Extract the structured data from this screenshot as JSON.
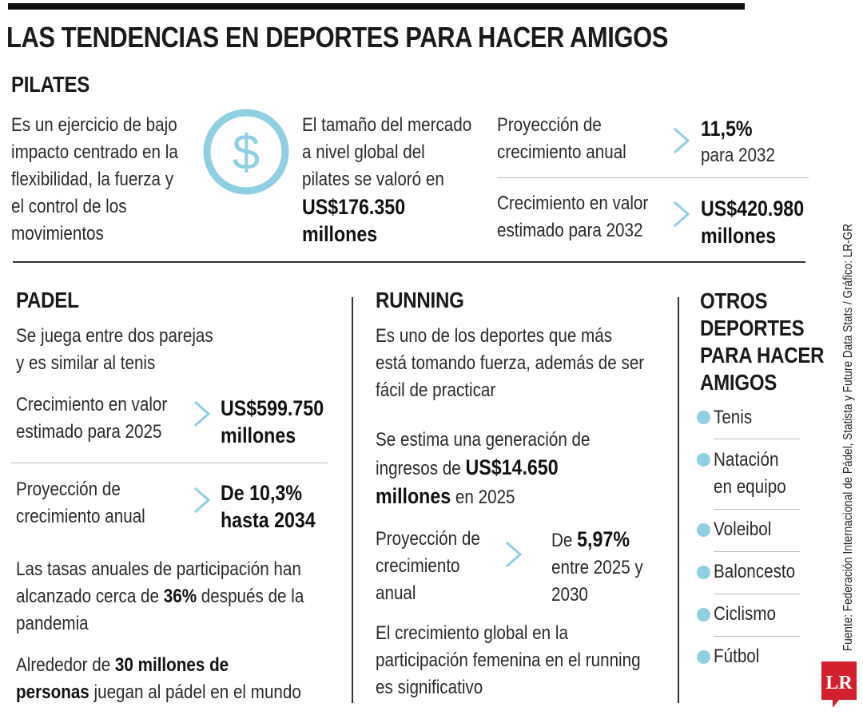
{
  "title": "LAS TENDENCIAS EN DEPORTES PARA HACER AMIGOS",
  "colors": {
    "accent": "#8ecfe3",
    "text": "#1a1a1a",
    "lr_red": "#d21f2b"
  },
  "pilates": {
    "heading": "PILATES",
    "description": [
      "Es un ejercicio de bajo",
      "impacto centrado en la",
      "flexibilidad, la fuerza y",
      "el control de los",
      "movimientos"
    ],
    "icon": "dollar-icon",
    "market": [
      "El tamaño del mercado",
      "a nivel global del",
      "pilates se valoró en"
    ],
    "market_value": [
      "US$176.350",
      "millones"
    ],
    "stat1_label": [
      "Proyección de",
      "crecimiento anual"
    ],
    "stat1_value": "11,5%",
    "stat1_sub": "para 2032",
    "stat2_label": [
      "Crecimiento en valor",
      "estimado para 2032"
    ],
    "stat2_value": [
      "US$420.980",
      "millones"
    ]
  },
  "padel": {
    "heading": "PADEL",
    "intro": [
      "Se juega entre dos parejas",
      "y es similar al tenis"
    ],
    "stat1_label": [
      "Crecimiento en valor",
      "estimado para 2025"
    ],
    "stat1_value": [
      "US$599.750",
      "millones"
    ],
    "stat2_label": [
      "Proyección de",
      "crecimiento anual"
    ],
    "stat2_value": [
      "De 10,3%",
      "hasta 2034"
    ],
    "rates_line1": "Las tasas anuales de participación han",
    "rates_pre": "alcanzado cerca de ",
    "rates_bold": "36%",
    "rates_post": " después de la",
    "rates_line3": "pandemia",
    "people_pre": "Alrededor de ",
    "people_bold1": "30 millones de",
    "people_bold2": "personas",
    "people_post": " juegan al pádel en el mundo"
  },
  "running": {
    "heading": "RUNNING",
    "intro": [
      "Es uno de los deportes que más",
      "está tomando fuerza, además de ser",
      "fácil de practicar"
    ],
    "income_line1": "Se estima una generación de",
    "income_pre": "ingresos de ",
    "income_bold": "US$14.650",
    "income_bold2": "millones",
    "income_post": " en 2025",
    "stat_label": [
      "Proyección de",
      "crecimiento",
      "anual"
    ],
    "stat_pre": "De ",
    "stat_bold": "5,97%",
    "stat_line2": "entre 2025 y",
    "stat_line3": "2030",
    "female": [
      "El crecimiento global en la",
      "participación femenina en el running",
      "es significativo"
    ]
  },
  "others": {
    "heading": [
      "OTROS",
      "DEPORTES",
      "PARA HACER",
      "AMIGOS"
    ],
    "items": [
      {
        "label": [
          "Tenis"
        ]
      },
      {
        "label": [
          "Natación",
          "en equipo"
        ]
      },
      {
        "label": [
          "Voleibol"
        ]
      },
      {
        "label": [
          "Baloncesto"
        ]
      },
      {
        "label": [
          "Ciclismo"
        ]
      },
      {
        "label": [
          "Fútbol"
        ]
      }
    ]
  },
  "source": "Fuente: Federación Internacional de Pádel, Statista y Future Data Stats / Gráfico: LR-GR",
  "logo": "LR"
}
